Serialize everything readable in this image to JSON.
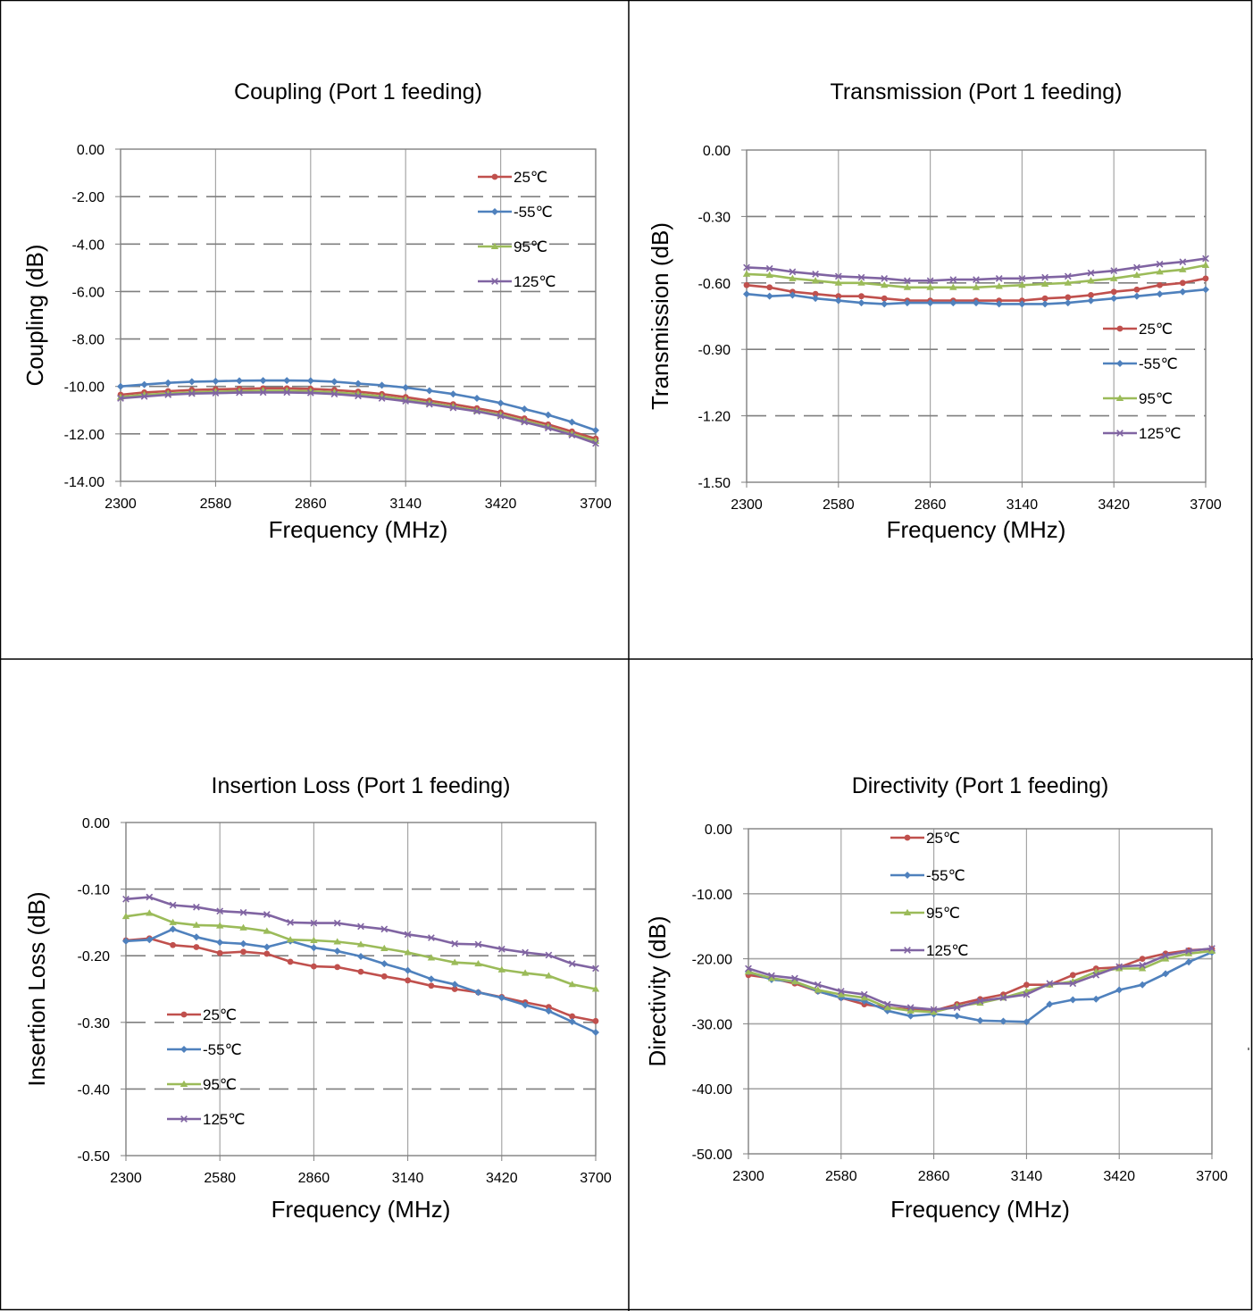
{
  "charts": [
    {
      "type": "line",
      "title": "Coupling (Port 1 feeding)",
      "xlabel": "Frequency (MHz)",
      "ylabel": "Coupling (dB)",
      "xlim": [
        2300,
        3700
      ],
      "xticks": [
        2300,
        2580,
        2860,
        3140,
        3420,
        3700
      ],
      "xtick_labels": [
        "2300",
        "2580",
        "2860",
        "3140",
        "3420",
        "3700"
      ],
      "ylim": [
        -14,
        0
      ],
      "yticks": [
        0,
        -2,
        -4,
        -6,
        -8,
        -10,
        -12,
        -14
      ],
      "ytick_labels": [
        "0.00",
        "-2.00",
        "-4.00",
        "-6.00",
        "-8.00",
        "-10.00",
        "-12.00",
        "-14.00"
      ],
      "grid_x": "solid",
      "grid_y": "dashed",
      "legend_position": "top-right",
      "x": [
        2300,
        2370,
        2440,
        2510,
        2580,
        2650,
        2720,
        2790,
        2860,
        2930,
        3000,
        3070,
        3140,
        3210,
        3280,
        3350,
        3420,
        3490,
        3560,
        3630,
        3700
      ],
      "series": [
        {
          "name": "25℃",
          "color": "#c0504d",
          "marker": "circle",
          "values": [
            -10.35,
            -10.25,
            -10.2,
            -10.15,
            -10.12,
            -10.1,
            -10.08,
            -10.08,
            -10.1,
            -10.15,
            -10.22,
            -10.32,
            -10.45,
            -10.6,
            -10.75,
            -10.92,
            -11.1,
            -11.35,
            -11.6,
            -11.9,
            -12.2
          ]
        },
        {
          "name": "-55℃",
          "color": "#4f81bd",
          "marker": "diamond",
          "values": [
            -10.0,
            -9.92,
            -9.85,
            -9.8,
            -9.78,
            -9.76,
            -9.75,
            -9.75,
            -9.76,
            -9.8,
            -9.88,
            -9.95,
            -10.05,
            -10.18,
            -10.32,
            -10.5,
            -10.7,
            -10.95,
            -11.2,
            -11.5,
            -11.85
          ]
        },
        {
          "name": "95℃",
          "color": "#9bbb59",
          "marker": "triangle",
          "values": [
            -10.45,
            -10.35,
            -10.3,
            -10.25,
            -10.22,
            -10.2,
            -10.18,
            -10.18,
            -10.2,
            -10.25,
            -10.32,
            -10.42,
            -10.55,
            -10.7,
            -10.85,
            -11.02,
            -11.2,
            -11.45,
            -11.7,
            -12.0,
            -12.3
          ]
        },
        {
          "name": "125℃",
          "color": "#8064a2",
          "marker": "x",
          "values": [
            -10.5,
            -10.42,
            -10.35,
            -10.3,
            -10.28,
            -10.26,
            -10.25,
            -10.25,
            -10.27,
            -10.32,
            -10.4,
            -10.5,
            -10.62,
            -10.75,
            -10.9,
            -11.05,
            -11.25,
            -11.5,
            -11.75,
            -12.05,
            -12.4
          ]
        }
      ]
    },
    {
      "type": "line",
      "title": "Transmission (Port 1 feeding)",
      "xlabel": "Frequency (MHz)",
      "ylabel": "Transmission (dB)",
      "xlim": [
        2300,
        3700
      ],
      "xticks": [
        2300,
        2580,
        2860,
        3140,
        3420,
        3700
      ],
      "xtick_labels": [
        "2300",
        "2580",
        "2860",
        "3140",
        "3420",
        "3700"
      ],
      "ylim": [
        -1.5,
        0
      ],
      "yticks": [
        0,
        -0.3,
        -0.6,
        -0.9,
        -1.2,
        -1.5
      ],
      "ytick_labels": [
        "0.00",
        "-0.30",
        "-0.60",
        "-0.90",
        "-1.20",
        "-1.50"
      ],
      "grid_x": "solid",
      "grid_y": "dashed",
      "legend_position": "right",
      "x": [
        2300,
        2370,
        2440,
        2510,
        2580,
        2650,
        2720,
        2790,
        2860,
        2930,
        3000,
        3070,
        3140,
        3210,
        3280,
        3350,
        3420,
        3490,
        3560,
        3630,
        3700
      ],
      "series": [
        {
          "name": "25℃",
          "color": "#c0504d",
          "marker": "circle",
          "values": [
            -0.61,
            -0.62,
            -0.64,
            -0.65,
            -0.66,
            -0.66,
            -0.67,
            -0.68,
            -0.68,
            -0.68,
            -0.68,
            -0.68,
            -0.68,
            -0.67,
            -0.665,
            -0.655,
            -0.64,
            -0.63,
            -0.61,
            -0.6,
            -0.58
          ]
        },
        {
          "name": "-55℃",
          "color": "#4f81bd",
          "marker": "diamond",
          "values": [
            -0.65,
            -0.66,
            -0.655,
            -0.67,
            -0.68,
            -0.69,
            -0.695,
            -0.69,
            -0.69,
            -0.69,
            -0.69,
            -0.695,
            -0.695,
            -0.695,
            -0.69,
            -0.68,
            -0.67,
            -0.66,
            -0.65,
            -0.64,
            -0.63
          ]
        },
        {
          "name": "95℃",
          "color": "#9bbb59",
          "marker": "triangle",
          "values": [
            -0.56,
            -0.565,
            -0.58,
            -0.59,
            -0.6,
            -0.6,
            -0.61,
            -0.62,
            -0.62,
            -0.62,
            -0.62,
            -0.615,
            -0.61,
            -0.605,
            -0.6,
            -0.59,
            -0.58,
            -0.565,
            -0.55,
            -0.54,
            -0.52
          ]
        },
        {
          "name": "125℃",
          "color": "#8064a2",
          "marker": "x",
          "values": [
            -0.53,
            -0.535,
            -0.55,
            -0.56,
            -0.57,
            -0.575,
            -0.58,
            -0.59,
            -0.59,
            -0.585,
            -0.585,
            -0.58,
            -0.58,
            -0.575,
            -0.57,
            -0.555,
            -0.545,
            -0.53,
            -0.515,
            -0.505,
            -0.49
          ]
        }
      ]
    },
    {
      "type": "line",
      "title": "Insertion Loss (Port 1 feeding)",
      "xlabel": "Frequency (MHz)",
      "ylabel": "Insertion Loss (dB)",
      "xlim": [
        2300,
        3700
      ],
      "xticks": [
        2300,
        2580,
        2860,
        3140,
        3420,
        3700
      ],
      "xtick_labels": [
        "2300",
        "2580",
        "2860",
        "3140",
        "3420",
        "3700"
      ],
      "ylim": [
        -0.5,
        0
      ],
      "yticks": [
        0,
        -0.1,
        -0.2,
        -0.3,
        -0.4,
        -0.5
      ],
      "ytick_labels": [
        "0.00",
        "-0.10",
        "-0.20",
        "-0.30",
        "-0.40",
        "-0.50"
      ],
      "grid_x": "solid",
      "grid_y": "dashed",
      "legend_position": "bottom-left",
      "x": [
        2300,
        2370,
        2440,
        2510,
        2580,
        2650,
        2720,
        2790,
        2860,
        2930,
        3000,
        3070,
        3140,
        3210,
        3280,
        3350,
        3420,
        3490,
        3560,
        3630,
        3700
      ],
      "series": [
        {
          "name": "25℃",
          "color": "#c0504d",
          "marker": "circle",
          "values": [
            -0.177,
            -0.174,
            -0.184,
            -0.187,
            -0.196,
            -0.194,
            -0.197,
            -0.209,
            -0.216,
            -0.217,
            -0.224,
            -0.231,
            -0.237,
            -0.245,
            -0.25,
            -0.255,
            -0.262,
            -0.27,
            -0.277,
            -0.291,
            -0.298
          ]
        },
        {
          "name": "-55℃",
          "color": "#4f81bd",
          "marker": "diamond",
          "values": [
            -0.178,
            -0.176,
            -0.16,
            -0.172,
            -0.18,
            -0.182,
            -0.187,
            -0.178,
            -0.188,
            -0.193,
            -0.201,
            -0.212,
            -0.222,
            -0.235,
            -0.243,
            -0.255,
            -0.263,
            -0.274,
            -0.283,
            -0.299,
            -0.315
          ]
        },
        {
          "name": "95℃",
          "color": "#9bbb59",
          "marker": "triangle",
          "values": [
            -0.141,
            -0.136,
            -0.15,
            -0.154,
            -0.155,
            -0.158,
            -0.163,
            -0.176,
            -0.177,
            -0.179,
            -0.183,
            -0.189,
            -0.195,
            -0.203,
            -0.21,
            -0.212,
            -0.221,
            -0.226,
            -0.23,
            -0.243,
            -0.25
          ]
        },
        {
          "name": "125℃",
          "color": "#8064a2",
          "marker": "x",
          "values": [
            -0.115,
            -0.112,
            -0.124,
            -0.127,
            -0.133,
            -0.135,
            -0.138,
            -0.15,
            -0.151,
            -0.151,
            -0.156,
            -0.16,
            -0.168,
            -0.173,
            -0.182,
            -0.183,
            -0.19,
            -0.195,
            -0.199,
            -0.212,
            -0.219
          ]
        }
      ]
    },
    {
      "type": "line",
      "title": "Directivity (Port 1 feeding)",
      "xlabel": "Frequency (MHz)",
      "ylabel": "Directivity (dB)",
      "xlim": [
        2300,
        3700
      ],
      "xticks": [
        2300,
        2580,
        2860,
        3140,
        3420,
        3700
      ],
      "xtick_labels": [
        "2300",
        "2580",
        "2860",
        "3140",
        "3420",
        "3700"
      ],
      "ylim": [
        -50,
        0
      ],
      "yticks": [
        0,
        -10,
        -20,
        -30,
        -40,
        -50
      ],
      "ytick_labels": [
        "0.00",
        "-10.00",
        "-20.00",
        "-30.00",
        "-40.00",
        "-50.00"
      ],
      "grid_x": "solid",
      "grid_y": "solid",
      "legend_position": "top-center",
      "x": [
        2300,
        2370,
        2440,
        2510,
        2580,
        2650,
        2720,
        2790,
        2860,
        2930,
        3000,
        3070,
        3140,
        3210,
        3280,
        3350,
        3420,
        3490,
        3560,
        3630,
        3700
      ],
      "series": [
        {
          "name": "25℃",
          "color": "#c0504d",
          "marker": "circle",
          "values": [
            -22.5,
            -23.0,
            -23.8,
            -25.0,
            -26.0,
            -27.0,
            -27.5,
            -27.8,
            -28.0,
            -27.0,
            -26.2,
            -25.5,
            -24.0,
            -24.0,
            -22.5,
            -21.5,
            -21.3,
            -20.0,
            -19.2,
            -18.7,
            -18.5
          ]
        },
        {
          "name": "-55℃",
          "color": "#4f81bd",
          "marker": "diamond",
          "values": [
            -22.0,
            -23.2,
            -23.5,
            -25.0,
            -26.0,
            -26.5,
            -28.0,
            -28.8,
            -28.5,
            -28.8,
            -29.5,
            -29.6,
            -29.7,
            -27.0,
            -26.3,
            -26.2,
            -24.8,
            -24.0,
            -22.3,
            -20.5,
            -19.0
          ]
        },
        {
          "name": "95℃",
          "color": "#9bbb59",
          "marker": "triangle",
          "values": [
            -22.0,
            -23.0,
            -23.5,
            -24.8,
            -25.5,
            -26.0,
            -27.5,
            -28.0,
            -28.2,
            -27.3,
            -26.8,
            -26.0,
            -25.0,
            -24.0,
            -23.5,
            -22.0,
            -21.5,
            -21.5,
            -20.0,
            -19.2,
            -18.8
          ]
        },
        {
          "name": "125℃",
          "color": "#8064a2",
          "marker": "x",
          "values": [
            -21.5,
            -22.6,
            -23.0,
            -24.0,
            -25.0,
            -25.5,
            -27.0,
            -27.5,
            -27.8,
            -27.5,
            -26.5,
            -26.0,
            -25.5,
            -23.8,
            -23.8,
            -22.5,
            -21.2,
            -21.0,
            -19.5,
            -18.8,
            -18.4
          ]
        }
      ]
    }
  ]
}
